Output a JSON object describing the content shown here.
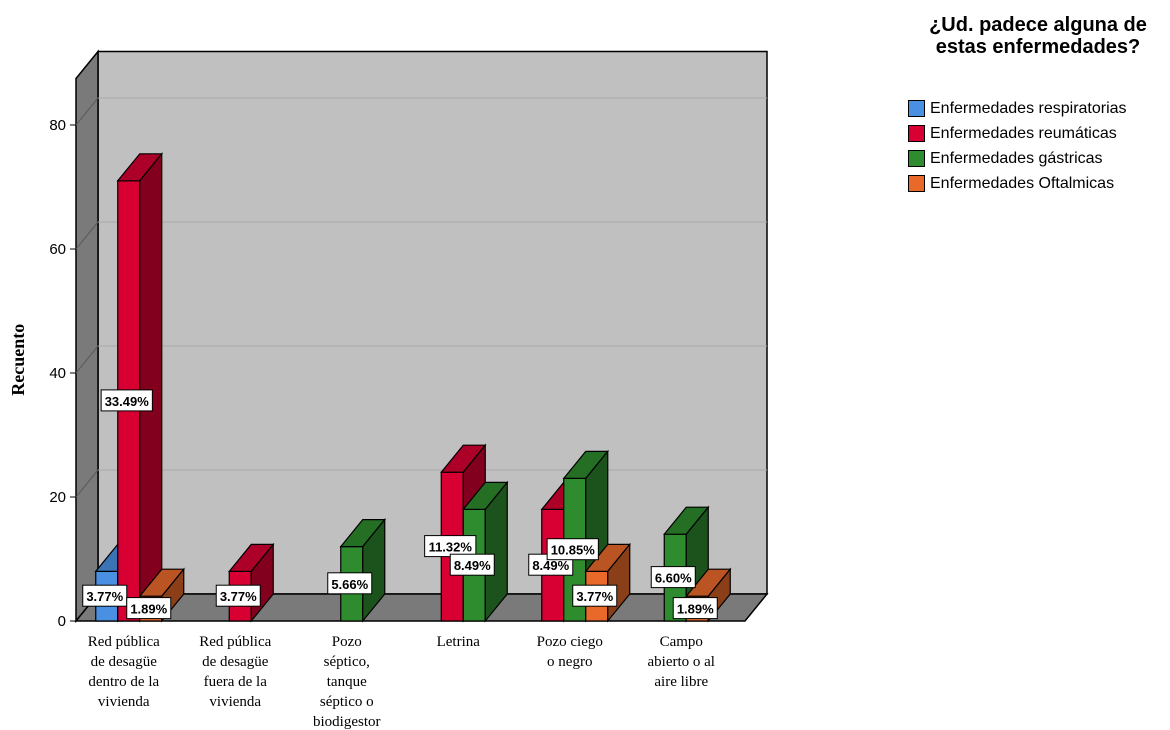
{
  "chart_data": {
    "type": "bar",
    "ylabel": "Recuento",
    "ylim": [
      0,
      80
    ],
    "yticks": [
      0,
      20,
      40,
      60,
      80
    ],
    "grid": true,
    "legend_position": "top-right",
    "legend_title": "¿Ud. padece alguna de estas enfermedades?",
    "categories": [
      "Red pública de desagüe dentro de la vivienda",
      "Red pública de desagüe fuera de la vivienda",
      "Pozo séptico, tanque séptico o biodigestor",
      "Letrina",
      "Pozo ciego o negro",
      "Campo abierto o al aire libre"
    ],
    "category_lines": [
      [
        "Red pública",
        "de desagüe",
        "dentro de la",
        "vivienda"
      ],
      [
        "Red pública",
        "de desagüe",
        "fuera de la",
        "vivienda"
      ],
      [
        "Pozo",
        "séptico,",
        "tanque",
        "séptico o",
        "biodigestor"
      ],
      [
        "Letrina"
      ],
      [
        "Pozo ciego",
        "o negro"
      ],
      [
        "Campo",
        "abierto o al",
        "aire libre"
      ]
    ],
    "series": [
      {
        "name": "Enfermedades respiratorias",
        "color": "#4a90e2",
        "values": [
          8,
          0,
          0,
          0,
          0,
          0
        ],
        "labels": [
          "3.77%",
          "",
          "",
          "",
          "",
          ""
        ]
      },
      {
        "name": "Enfermedades reumáticas",
        "color": "#d80032",
        "values": [
          71,
          8,
          0,
          24,
          18,
          0
        ],
        "labels": [
          "33.49%",
          "3.77%",
          "",
          "11.32%",
          "8.49%",
          ""
        ]
      },
      {
        "name": "Enfermedades gástricas",
        "color": "#2e8b2e",
        "values": [
          0,
          0,
          12,
          18,
          23,
          14
        ],
        "labels": [
          "",
          "",
          "5.66%",
          "8.49%",
          "10.85%",
          "6.60%"
        ]
      },
      {
        "name": "Enfermedades Oftalmicas",
        "color": "#e8692a",
        "values": [
          4,
          0,
          0,
          0,
          8,
          4
        ],
        "labels": [
          "1.89%",
          "",
          "",
          "",
          "3.77%",
          "1.89%"
        ]
      }
    ]
  }
}
